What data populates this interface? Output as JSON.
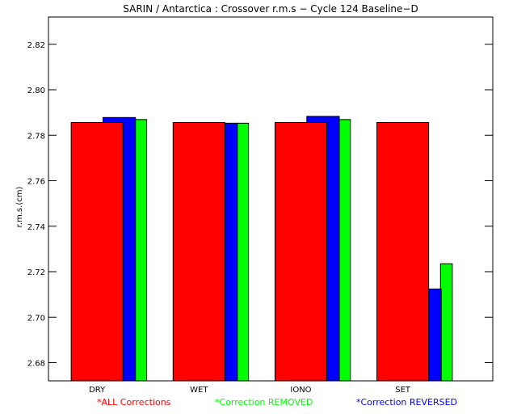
{
  "chart_data": {
    "type": "bar",
    "title": "SARIN / Antarctica : Crossover r.m.s − Cycle 124 Baseline−D",
    "xlabel": "",
    "ylabel": "r.m.s.(cm)",
    "categories": [
      "DRY",
      "WET",
      "IONO",
      "SET"
    ],
    "ylim": [
      2.672,
      2.832
    ],
    "y_ticks": [
      2.68,
      2.7,
      2.72,
      2.74,
      2.76,
      2.78,
      2.8,
      2.82
    ],
    "y_tick_labels": [
      "2.68",
      "2.70",
      "2.72",
      "2.74",
      "2.76",
      "2.78",
      "2.80",
      "2.82"
    ],
    "grid": false,
    "legend_placement": "bottom",
    "series": [
      {
        "name": "Correction REMOVED",
        "color": "#00ff00",
        "values": [
          2.7869,
          2.7853,
          2.7869,
          2.7235
        ]
      },
      {
        "name": "Correction REVERSED",
        "color": "#0000ff",
        "values": [
          2.7878,
          2.7853,
          2.7883,
          2.7124
        ]
      },
      {
        "name": "ALL Corrections",
        "color": "#ff0000",
        "values": [
          2.7856,
          2.7856,
          2.7856,
          2.7856
        ]
      }
    ],
    "legend": [
      {
        "marker": "*",
        "label": "ALL Corrections",
        "color": "#ff0000"
      },
      {
        "marker": "*",
        "label": "Correction REMOVED",
        "color": "#00ff00"
      },
      {
        "marker": "*",
        "label": "Correction REVERSED",
        "color": "#0000ff"
      }
    ]
  }
}
